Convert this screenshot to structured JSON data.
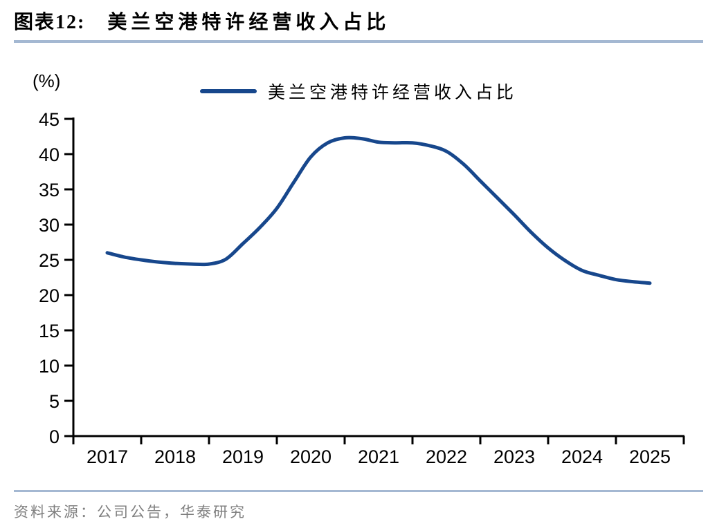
{
  "figure": {
    "label": "图表12:",
    "title": "美兰空港特许经营收入占比",
    "unit_label": "(%)",
    "source": "资料来源：公司公告，华泰研究"
  },
  "legend": {
    "label": "美兰空港特许经营收入占比"
  },
  "colors": {
    "line": "#17478C",
    "rule": "#A4B8D2",
    "axis": "#000000",
    "source_text": "#7F7F7F"
  },
  "chart_data": {
    "type": "line",
    "title": "美兰空港特许经营收入占比",
    "xlabel": "",
    "ylabel": "(%)",
    "xlim": [
      2016.5,
      2025.5
    ],
    "ylim": [
      0,
      45
    ],
    "y_ticks": [
      0,
      5,
      10,
      15,
      20,
      25,
      30,
      35,
      40,
      45
    ],
    "x_tick_labels": [
      "2017",
      "2018",
      "2019",
      "2020",
      "2021",
      "2022",
      "2023",
      "2024",
      "2025"
    ],
    "grid": false,
    "legend_position": "top-center",
    "annual_values": {
      "2017": 26.0,
      "2018": 24.5,
      "2019": 27.3,
      "2020": 39.6,
      "2021": 41.7,
      "2022": 40.4,
      "2023": 31.4,
      "2024": 23.5,
      "2025": 21.7
    },
    "series": [
      {
        "name": "美兰空港特许经营收入占比",
        "x": [
          2017.0,
          2017.25,
          2017.5,
          2017.75,
          2018.0,
          2018.25,
          2018.5,
          2018.75,
          2019.0,
          2019.25,
          2019.5,
          2019.75,
          2020.0,
          2020.25,
          2020.5,
          2020.75,
          2021.0,
          2021.25,
          2021.5,
          2021.75,
          2022.0,
          2022.25,
          2022.5,
          2022.75,
          2023.0,
          2023.25,
          2023.5,
          2023.75,
          2024.0,
          2024.25,
          2024.5,
          2024.75,
          2025.0
        ],
        "values": [
          26.0,
          25.4,
          25.0,
          24.7,
          24.5,
          24.4,
          24.4,
          25.1,
          27.3,
          29.6,
          32.3,
          36.0,
          39.6,
          41.6,
          42.3,
          42.2,
          41.7,
          41.6,
          41.6,
          41.2,
          40.4,
          38.6,
          36.2,
          33.8,
          31.4,
          28.9,
          26.7,
          24.9,
          23.5,
          22.8,
          22.2,
          21.9,
          21.7
        ]
      }
    ]
  }
}
